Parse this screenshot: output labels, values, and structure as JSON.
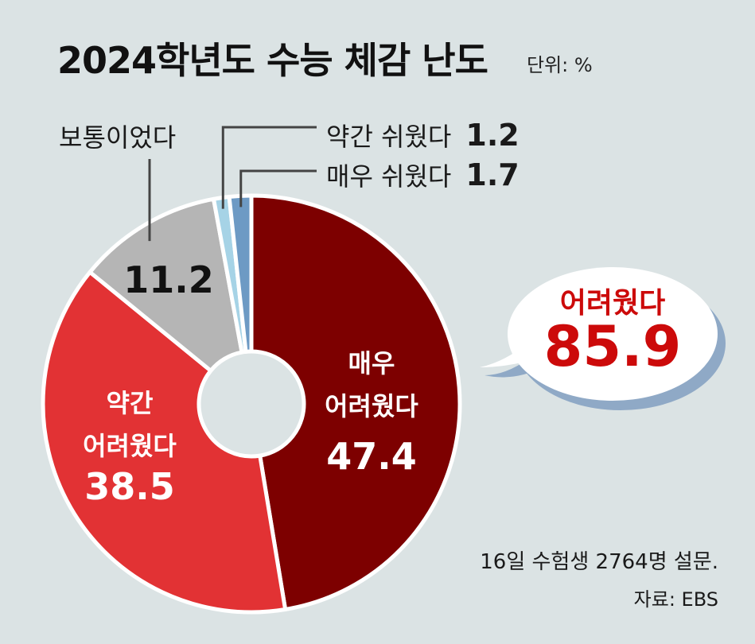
{
  "title": "2024학년도 수능 체감 난도",
  "unit_label": "단위: %",
  "chart_data": {
    "type": "pie",
    "title": "2024학년도 수능 체감 난도",
    "unit": "%",
    "slices": [
      {
        "label": "매우 어려웠다",
        "label_lines": [
          "매우",
          "어려웠다"
        ],
        "value": 47.4,
        "value_text": "47.4",
        "color": "#7d0000"
      },
      {
        "label": "약간 어려웠다",
        "label_lines": [
          "약간",
          "어려웠다"
        ],
        "value": 38.5,
        "value_text": "38.5",
        "color": "#e23234"
      },
      {
        "label": "보통이었다",
        "value": 11.2,
        "value_text": "11.2",
        "color": "#b5b5b5"
      },
      {
        "label": "약간 쉬웠다",
        "value": 1.2,
        "value_text": "1.2",
        "color": "#a6d3e6"
      },
      {
        "label": "매우 쉬웠다",
        "value": 1.7,
        "value_text": "1.7",
        "color": "#6d9ac4"
      }
    ],
    "callout": {
      "label": "어려웠다",
      "value": "85.9"
    }
  },
  "source": {
    "note": "16일 수험생 2764명 설문.",
    "credit": "자료: EBS"
  },
  "colors": {
    "background": "#dbe3e4",
    "accent": "#cc0a0a",
    "bubble_shadow": "#8fa9c6"
  }
}
